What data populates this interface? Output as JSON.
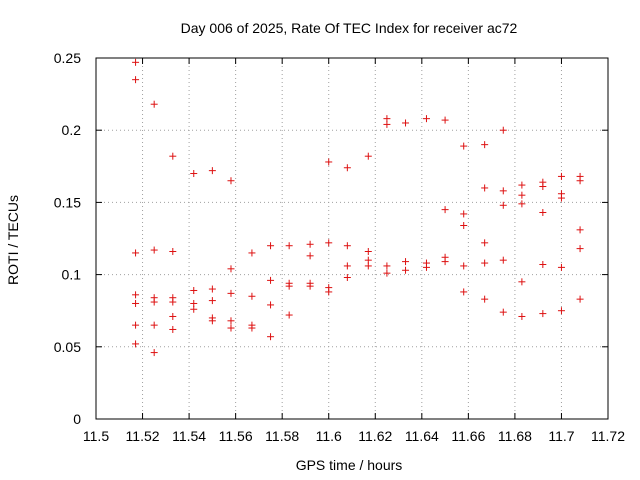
{
  "chart_data": {
    "type": "scatter",
    "title": "Day 006 of 2025, Rate Of TEC Index for receiver ac72",
    "xlabel": "GPS time / hours",
    "ylabel": "ROTI / TECUs",
    "xlim": [
      11.5,
      11.72
    ],
    "ylim": [
      0,
      0.25
    ],
    "xticks": [
      "11.5",
      "11.52",
      "11.54",
      "11.56",
      "11.58",
      "11.6",
      "11.62",
      "11.64",
      "11.66",
      "11.68",
      "11.7",
      "11.72"
    ],
    "yticks": [
      "0",
      "0.05",
      "0.1",
      "0.15",
      "0.2",
      "0.25"
    ],
    "grid": true,
    "marker": "+",
    "marker_color": "#dd1111",
    "series": [
      {
        "name": "ROTI",
        "points": [
          [
            11.517,
            0.247
          ],
          [
            11.517,
            0.235
          ],
          [
            11.517,
            0.115
          ],
          [
            11.517,
            0.086
          ],
          [
            11.517,
            0.08
          ],
          [
            11.517,
            0.065
          ],
          [
            11.517,
            0.052
          ],
          [
            11.525,
            0.218
          ],
          [
            11.525,
            0.117
          ],
          [
            11.525,
            0.084
          ],
          [
            11.525,
            0.081
          ],
          [
            11.525,
            0.065
          ],
          [
            11.525,
            0.046
          ],
          [
            11.533,
            0.182
          ],
          [
            11.533,
            0.116
          ],
          [
            11.533,
            0.084
          ],
          [
            11.533,
            0.081
          ],
          [
            11.533,
            0.071
          ],
          [
            11.533,
            0.062
          ],
          [
            11.542,
            0.17
          ],
          [
            11.542,
            0.089
          ],
          [
            11.542,
            0.08
          ],
          [
            11.542,
            0.076
          ],
          [
            11.55,
            0.172
          ],
          [
            11.55,
            0.09
          ],
          [
            11.55,
            0.082
          ],
          [
            11.55,
            0.07
          ],
          [
            11.55,
            0.068
          ],
          [
            11.558,
            0.165
          ],
          [
            11.558,
            0.104
          ],
          [
            11.558,
            0.087
          ],
          [
            11.558,
            0.068
          ],
          [
            11.558,
            0.063
          ],
          [
            11.567,
            0.115
          ],
          [
            11.567,
            0.085
          ],
          [
            11.567,
            0.065
          ],
          [
            11.567,
            0.063
          ],
          [
            11.575,
            0.12
          ],
          [
            11.575,
            0.096
          ],
          [
            11.575,
            0.079
          ],
          [
            11.575,
            0.057
          ],
          [
            11.583,
            0.12
          ],
          [
            11.583,
            0.094
          ],
          [
            11.583,
            0.092
          ],
          [
            11.583,
            0.072
          ],
          [
            11.592,
            0.121
          ],
          [
            11.592,
            0.113
          ],
          [
            11.592,
            0.094
          ],
          [
            11.592,
            0.092
          ],
          [
            11.6,
            0.178
          ],
          [
            11.6,
            0.122
          ],
          [
            11.6,
            0.091
          ],
          [
            11.6,
            0.088
          ],
          [
            11.608,
            0.174
          ],
          [
            11.608,
            0.12
          ],
          [
            11.608,
            0.106
          ],
          [
            11.608,
            0.098
          ],
          [
            11.617,
            0.182
          ],
          [
            11.617,
            0.116
          ],
          [
            11.617,
            0.11
          ],
          [
            11.617,
            0.106
          ],
          [
            11.625,
            0.208
          ],
          [
            11.625,
            0.204
          ],
          [
            11.625,
            0.106
          ],
          [
            11.625,
            0.101
          ],
          [
            11.633,
            0.205
          ],
          [
            11.633,
            0.109
          ],
          [
            11.633,
            0.103
          ],
          [
            11.642,
            0.208
          ],
          [
            11.642,
            0.108
          ],
          [
            11.642,
            0.105
          ],
          [
            11.65,
            0.207
          ],
          [
            11.65,
            0.145
          ],
          [
            11.65,
            0.112
          ],
          [
            11.65,
            0.109
          ],
          [
            11.658,
            0.189
          ],
          [
            11.658,
            0.142
          ],
          [
            11.658,
            0.134
          ],
          [
            11.658,
            0.106
          ],
          [
            11.658,
            0.088
          ],
          [
            11.667,
            0.19
          ],
          [
            11.667,
            0.16
          ],
          [
            11.667,
            0.122
          ],
          [
            11.667,
            0.108
          ],
          [
            11.667,
            0.083
          ],
          [
            11.675,
            0.2
          ],
          [
            11.675,
            0.158
          ],
          [
            11.675,
            0.148
          ],
          [
            11.675,
            0.11
          ],
          [
            11.675,
            0.074
          ],
          [
            11.683,
            0.162
          ],
          [
            11.683,
            0.155
          ],
          [
            11.683,
            0.149
          ],
          [
            11.683,
            0.095
          ],
          [
            11.683,
            0.071
          ],
          [
            11.692,
            0.164
          ],
          [
            11.692,
            0.161
          ],
          [
            11.692,
            0.143
          ],
          [
            11.692,
            0.107
          ],
          [
            11.692,
            0.073
          ],
          [
            11.7,
            0.168
          ],
          [
            11.7,
            0.156
          ],
          [
            11.7,
            0.153
          ],
          [
            11.7,
            0.105
          ],
          [
            11.7,
            0.075
          ],
          [
            11.708,
            0.168
          ],
          [
            11.708,
            0.165
          ],
          [
            11.708,
            0.131
          ],
          [
            11.708,
            0.118
          ],
          [
            11.708,
            0.083
          ]
        ]
      }
    ]
  }
}
